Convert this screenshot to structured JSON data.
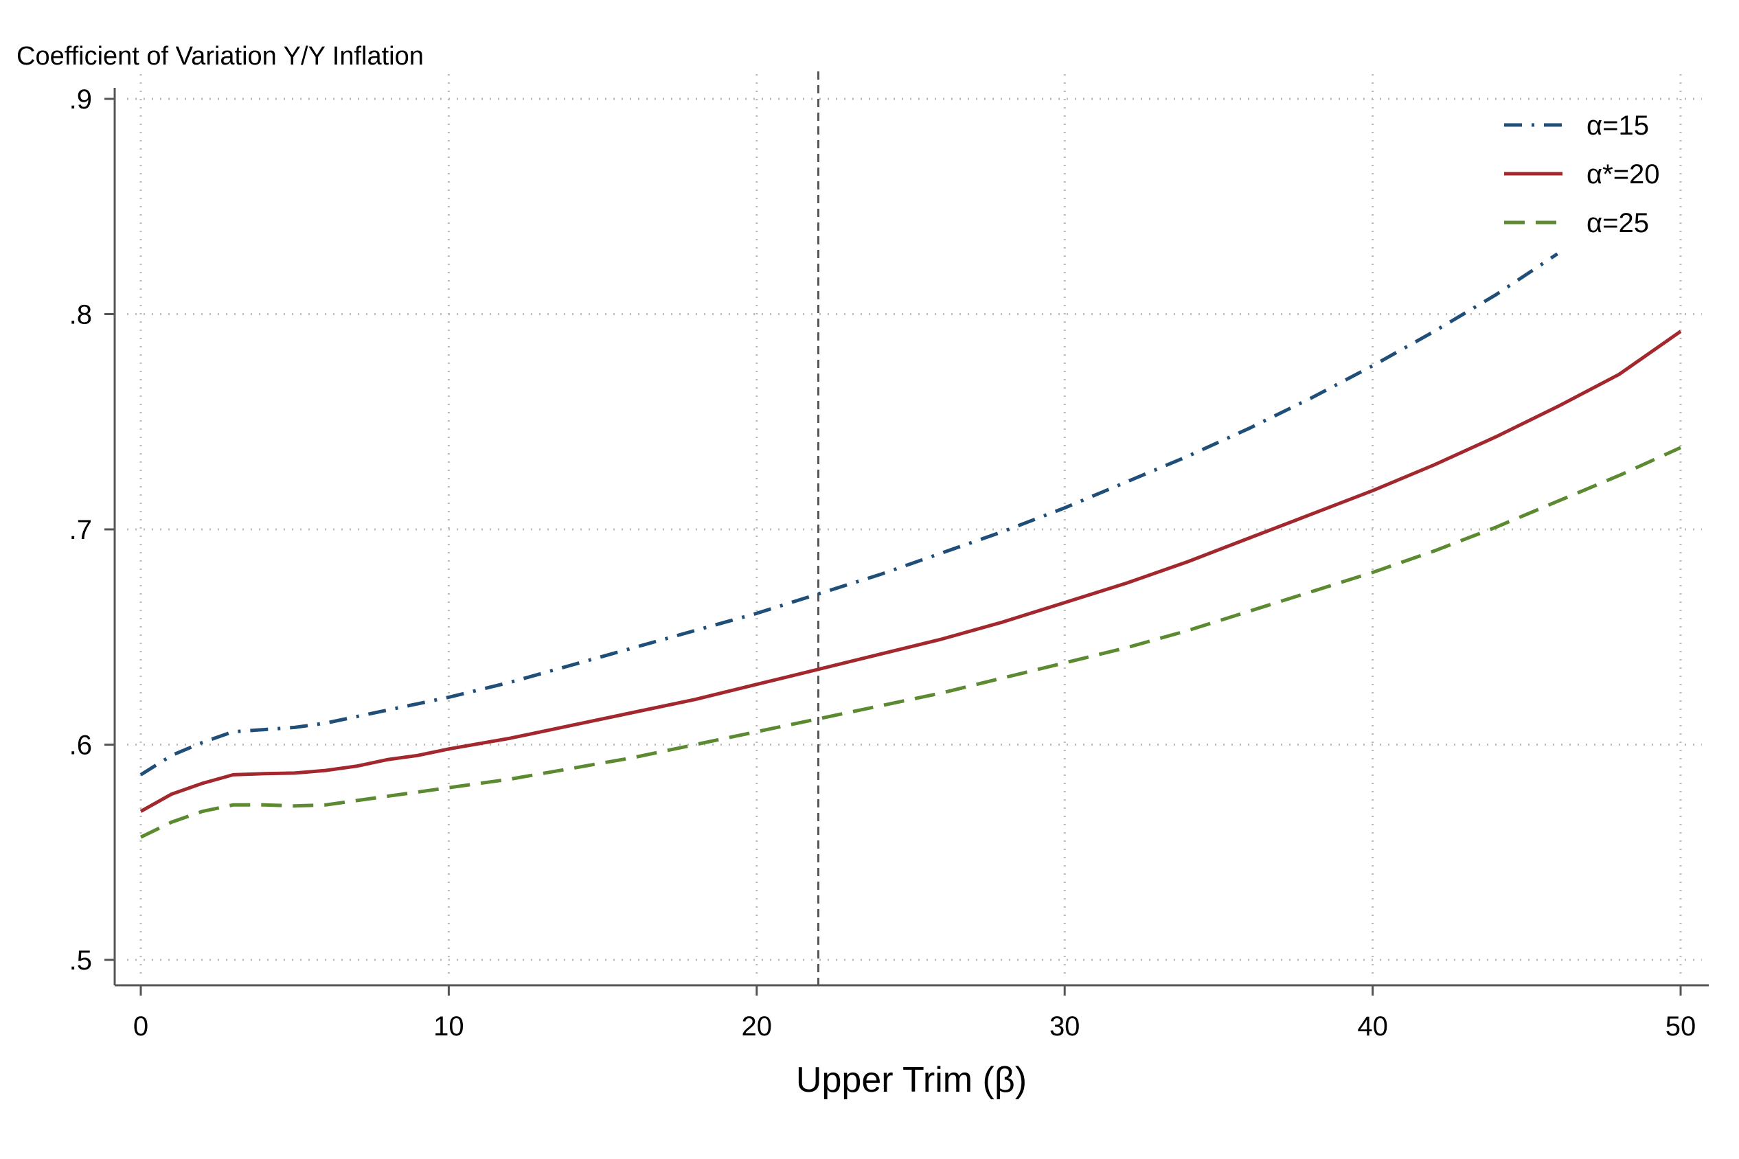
{
  "chart_data": {
    "type": "line",
    "ylabel": "Coefficient of Variation Y/Y Inflation",
    "xlabel": "Upper Trim (β)",
    "xlim": [
      0,
      50
    ],
    "ylim": [
      0.5,
      0.9
    ],
    "x_ticks": [
      0,
      10,
      20,
      30,
      40,
      50
    ],
    "x_tick_labels": [
      "0",
      "10",
      "20",
      "30",
      "40",
      "50"
    ],
    "y_ticks": [
      0.5,
      0.6,
      0.7,
      0.8,
      0.9
    ],
    "y_tick_labels": [
      ".5",
      ".6",
      ".7",
      ".8",
      ".9"
    ],
    "grid": true,
    "vertical_reference_line": 22,
    "legend_position": "top-right",
    "series": [
      {
        "name": "α=15",
        "color": "#1f4e79",
        "dash": "dash-dot",
        "x": [
          0,
          1,
          2,
          3,
          4,
          5,
          6,
          7,
          8,
          9,
          10,
          12,
          14,
          16,
          18,
          20,
          22,
          24,
          26,
          28,
          30,
          32,
          34,
          36,
          38,
          40,
          42,
          44,
          46
        ],
        "y": [
          0.586,
          0.595,
          0.601,
          0.606,
          0.607,
          0.608,
          0.61,
          0.613,
          0.616,
          0.619,
          0.622,
          0.629,
          0.637,
          0.645,
          0.653,
          0.661,
          0.67,
          0.679,
          0.689,
          0.699,
          0.71,
          0.722,
          0.734,
          0.747,
          0.761,
          0.776,
          0.792,
          0.809,
          0.828
        ]
      },
      {
        "name": "α*=20",
        "color": "#a3282e",
        "dash": "solid",
        "x": [
          0,
          1,
          2,
          3,
          4,
          5,
          6,
          7,
          8,
          9,
          10,
          12,
          14,
          16,
          18,
          20,
          22,
          24,
          26,
          28,
          30,
          32,
          34,
          36,
          38,
          40,
          42,
          44,
          46,
          48,
          50
        ],
        "y": [
          0.569,
          0.577,
          0.582,
          0.586,
          0.5865,
          0.5868,
          0.588,
          0.59,
          0.593,
          0.595,
          0.598,
          0.603,
          0.609,
          0.615,
          0.621,
          0.628,
          0.635,
          0.642,
          0.649,
          0.657,
          0.666,
          0.675,
          0.685,
          0.696,
          0.707,
          0.718,
          0.73,
          0.743,
          0.757,
          0.772,
          0.792
        ]
      },
      {
        "name": "α=25",
        "color": "#5b8a30",
        "dash": "dash",
        "x": [
          0,
          1,
          2,
          3,
          4,
          5,
          6,
          7,
          8,
          9,
          10,
          12,
          14,
          16,
          18,
          20,
          22,
          24,
          26,
          28,
          30,
          32,
          34,
          36,
          38,
          40,
          42,
          44,
          46,
          48,
          50
        ],
        "y": [
          0.557,
          0.564,
          0.569,
          0.572,
          0.572,
          0.5715,
          0.572,
          0.574,
          0.576,
          0.578,
          0.58,
          0.584,
          0.589,
          0.594,
          0.6,
          0.606,
          0.612,
          0.618,
          0.624,
          0.631,
          0.638,
          0.645,
          0.653,
          0.662,
          0.671,
          0.68,
          0.69,
          0.701,
          0.713,
          0.725,
          0.738
        ]
      }
    ]
  }
}
